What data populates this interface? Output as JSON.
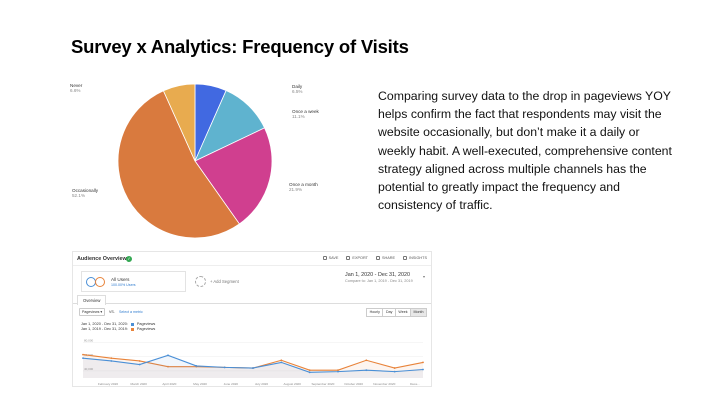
{
  "slide": {
    "title": "Survey x Analytics: Frequency of Visits",
    "body": "Comparing survey data to the drop in pageviews YOY helps confirm the fact that respondents may visit the website occasionally, but don’t make it a daily or weekly habit. A well-executed, comprehensive content strategy aligned across multiple channels has the potential to greatly impact the frequency and consistency of traffic."
  },
  "pie": {
    "slices": [
      {
        "label": "Daily",
        "pct": "6.5%",
        "value": 6.5,
        "color": "#4169e1"
      },
      {
        "label": "Once a week",
        "pct": "11.1%",
        "value": 11.1,
        "color": "#5fb3cf"
      },
      {
        "label": "Once a month",
        "pct": "21.9%",
        "value": 21.9,
        "color": "#d03f8f"
      },
      {
        "label": "Occasionally",
        "pct": "52.1%",
        "value": 52.1,
        "color": "#d97a3e"
      },
      {
        "label": "Never",
        "pct": "6.6%",
        "value": 6.6,
        "color": "#e8ab4f"
      }
    ]
  },
  "ga": {
    "title": "Audience Overview",
    "tools": [
      "SAVE",
      "EXPORT",
      "SHARE",
      "INSIGHTS"
    ],
    "segment_name": "All Users",
    "segment_sub": "100.00% Users",
    "add_segment": "+ Add Segment",
    "date_range": "Jan 1, 2020 - Dec 31, 2020",
    "compare_range": "Compare to: Jan 1, 2019 - Dec 31, 2019",
    "tab": "Overview",
    "metric": "Pageviews",
    "vs": "VS.",
    "select_metric": "Select a metric",
    "periods": [
      "Hourly",
      "Day",
      "Week",
      "Month"
    ],
    "active_period": "Month",
    "legend": [
      {
        "range": "Jan 1, 2020 - Dec 31, 2020:",
        "metric": "Pageviews",
        "color": "#4a8fd6"
      },
      {
        "range": "Jan 1, 2019 - Dec 31, 2019:",
        "metric": "Pageviews",
        "color": "#e8833a"
      }
    ],
    "y_ticks": [
      "80,000",
      "60,000",
      "40,000"
    ],
    "months": [
      "February 2020",
      "March 2020",
      "April 2020",
      "May 2020",
      "June 2020",
      "July 2020",
      "August 2020",
      "September 2020",
      "October 2020",
      "November 2020",
      "Dece..."
    ],
    "series_2020": [
      58000,
      54000,
      49000,
      62000,
      47000,
      45000,
      44000,
      52000,
      38000,
      39000,
      41000,
      39000,
      42000
    ],
    "series_2019": [
      63000,
      58000,
      54000,
      46000,
      46000,
      45000,
      44000,
      55000,
      41000,
      41000,
      55000,
      44000,
      52000
    ]
  }
}
